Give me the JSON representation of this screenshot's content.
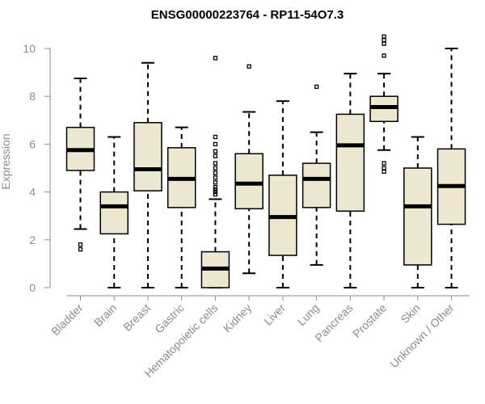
{
  "chart_data": {
    "type": "boxplot",
    "title": "ENSG00000223764 - RP11-54O7.3",
    "xlabel": "",
    "ylabel": "Expression",
    "ylim": [
      0,
      10.5
    ],
    "yticks": [
      0,
      2,
      4,
      6,
      8,
      10
    ],
    "grid": false,
    "box_color": "#efe8d0",
    "categories": [
      "Bladder",
      "Brain",
      "Breast",
      "Gastric",
      "Hematopoietic cells",
      "Kidney",
      "Liver",
      "Lung",
      "Pancreas",
      "Prostate",
      "Skin",
      "Unknown / Other"
    ],
    "boxes": [
      {
        "name": "Bladder",
        "whislo": 2.45,
        "q1": 4.9,
        "med": 5.75,
        "q3": 6.7,
        "whishi": 8.75,
        "fliers": [
          1.6,
          1.8
        ]
      },
      {
        "name": "Brain",
        "whislo": 0.0,
        "q1": 2.25,
        "med": 3.4,
        "q3": 4.0,
        "whishi": 6.3,
        "fliers": []
      },
      {
        "name": "Breast",
        "whislo": 0.0,
        "q1": 4.05,
        "med": 4.95,
        "q3": 6.9,
        "whishi": 9.4,
        "fliers": []
      },
      {
        "name": "Gastric",
        "whislo": 0.0,
        "q1": 3.35,
        "med": 4.55,
        "q3": 5.85,
        "whishi": 6.7,
        "fliers": []
      },
      {
        "name": "Hematopoietic cells",
        "whislo": 0.0,
        "q1": 0.0,
        "med": 0.8,
        "q3": 1.5,
        "whishi": 3.7,
        "fliers": [
          3.9,
          4.0,
          4.1,
          4.2,
          4.4,
          4.6,
          4.8,
          5.0,
          5.2,
          5.5,
          5.7,
          6.0,
          6.3,
          9.6
        ]
      },
      {
        "name": "Kidney",
        "whislo": 0.6,
        "q1": 3.3,
        "med": 4.35,
        "q3": 5.6,
        "whishi": 7.35,
        "fliers": [
          9.25
        ]
      },
      {
        "name": "Liver",
        "whislo": 0.0,
        "q1": 1.35,
        "med": 2.95,
        "q3": 4.7,
        "whishi": 7.8,
        "fliers": []
      },
      {
        "name": "Lung",
        "whislo": 0.95,
        "q1": 3.35,
        "med": 4.55,
        "q3": 5.2,
        "whishi": 6.5,
        "fliers": [
          8.4
        ]
      },
      {
        "name": "Pancreas",
        "whislo": 0.0,
        "q1": 3.2,
        "med": 5.95,
        "q3": 7.25,
        "whishi": 8.95,
        "fliers": []
      },
      {
        "name": "Prostate",
        "whislo": 5.75,
        "q1": 6.95,
        "med": 7.55,
        "q3": 8.0,
        "whishi": 8.95,
        "fliers": [
          4.85,
          5.0,
          5.2,
          9.7,
          10.2,
          10.35,
          10.5
        ]
      },
      {
        "name": "Skin",
        "whislo": 0.0,
        "q1": 0.95,
        "med": 3.4,
        "q3": 5.0,
        "whishi": 6.3,
        "fliers": []
      },
      {
        "name": "Unknown / Other",
        "whislo": 0.0,
        "q1": 2.65,
        "med": 4.25,
        "q3": 5.8,
        "whishi": 10.0,
        "fliers": []
      }
    ]
  }
}
